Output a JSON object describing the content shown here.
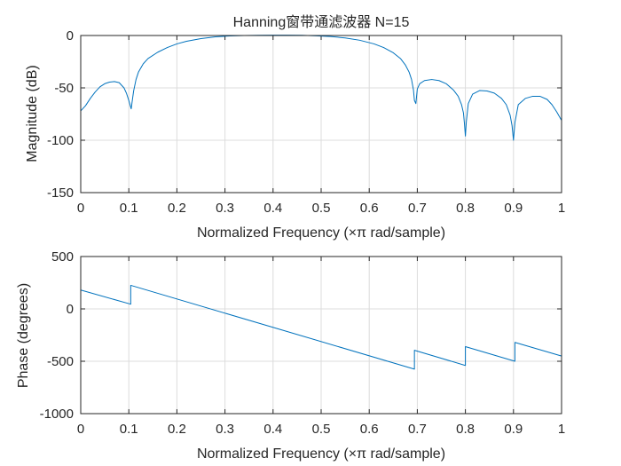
{
  "chart_data": [
    {
      "type": "line",
      "title": "Hanning窗带通滤波器 N=15",
      "xlabel": "Normalized Frequency  (×π rad/sample)",
      "ylabel": "Magnitude (dB)",
      "xlim": [
        0,
        1
      ],
      "ylim": [
        -150,
        0
      ],
      "xticks": [
        0,
        0.1,
        0.2,
        0.3,
        0.4,
        0.5,
        0.6,
        0.7,
        0.8,
        0.9,
        1
      ],
      "xtick_labels": [
        "0",
        "0.1",
        "0.2",
        "0.3",
        "0.4",
        "0.5",
        "0.6",
        "0.7",
        "0.8",
        "0.9",
        "1"
      ],
      "yticks": [
        -150,
        -100,
        -50,
        0
      ],
      "ytick_labels": [
        "-150",
        "-100",
        "-50",
        "0"
      ],
      "grid": true,
      "series": [
        {
          "color": "#0072BD",
          "x": [
            0,
            0.01,
            0.02,
            0.03,
            0.04,
            0.05,
            0.06,
            0.07,
            0.08,
            0.09,
            0.095,
            0.1,
            0.103,
            0.105,
            0.107,
            0.11,
            0.115,
            0.12,
            0.13,
            0.14,
            0.16,
            0.18,
            0.2,
            0.22,
            0.25,
            0.28,
            0.31,
            0.34,
            0.37,
            0.4,
            0.43,
            0.46,
            0.49,
            0.52,
            0.55,
            0.58,
            0.61,
            0.63,
            0.65,
            0.665,
            0.675,
            0.683,
            0.688,
            0.692,
            0.694,
            0.697,
            0.7,
            0.705,
            0.715,
            0.73,
            0.745,
            0.76,
            0.775,
            0.785,
            0.792,
            0.796,
            0.798,
            0.8,
            0.802,
            0.806,
            0.815,
            0.83,
            0.845,
            0.86,
            0.875,
            0.885,
            0.893,
            0.897,
            0.9,
            0.903,
            0.91,
            0.925,
            0.94,
            0.955,
            0.97,
            0.98,
            0.99,
            1.0
          ],
          "y": [
            -72,
            -67,
            -60,
            -54,
            -49,
            -46,
            -44.5,
            -44,
            -45,
            -50,
            -55,
            -62,
            -67,
            -70,
            -63,
            -53,
            -42,
            -35,
            -27,
            -22,
            -16,
            -11.5,
            -8,
            -5.5,
            -3,
            -1.3,
            -0.4,
            0,
            0.2,
            0.3,
            0.3,
            0.2,
            -0.3,
            -1,
            -2.3,
            -4.5,
            -8,
            -11.5,
            -16.5,
            -22,
            -28,
            -35,
            -42,
            -52,
            -62,
            -65,
            -51,
            -46,
            -43,
            -42,
            -43,
            -46,
            -52,
            -58,
            -66,
            -74,
            -84,
            -96,
            -82,
            -65,
            -56,
            -52.5,
            -53,
            -55,
            -60,
            -66,
            -76,
            -86,
            -100,
            -83,
            -66,
            -60,
            -58,
            -58,
            -61,
            -66,
            -73,
            -81
          ]
        }
      ]
    },
    {
      "type": "line",
      "title": "",
      "xlabel": "Normalized Frequency  (×π rad/sample)",
      "ylabel": "Phase (degrees)",
      "xlim": [
        0,
        1
      ],
      "ylim": [
        -1000,
        500
      ],
      "xticks": [
        0,
        0.1,
        0.2,
        0.3,
        0.4,
        0.5,
        0.6,
        0.7,
        0.8,
        0.9,
        1
      ],
      "xtick_labels": [
        "0",
        "0.1",
        "0.2",
        "0.3",
        "0.4",
        "0.5",
        "0.6",
        "0.7",
        "0.8",
        "0.9",
        "1"
      ],
      "yticks": [
        -1000,
        -500,
        0,
        500
      ],
      "ytick_labels": [
        "-1000",
        "-500",
        "0",
        "500"
      ],
      "grid": true,
      "series": [
        {
          "color": "#0072BD",
          "x": [
            0,
            0.104,
            0.104,
            0.694,
            0.694,
            0.8,
            0.8,
            0.903,
            0.903,
            1.0
          ],
          "y": [
            180,
            45,
            225,
            -575,
            -395,
            -540,
            -360,
            -500,
            -320,
            -450
          ]
        }
      ]
    }
  ]
}
